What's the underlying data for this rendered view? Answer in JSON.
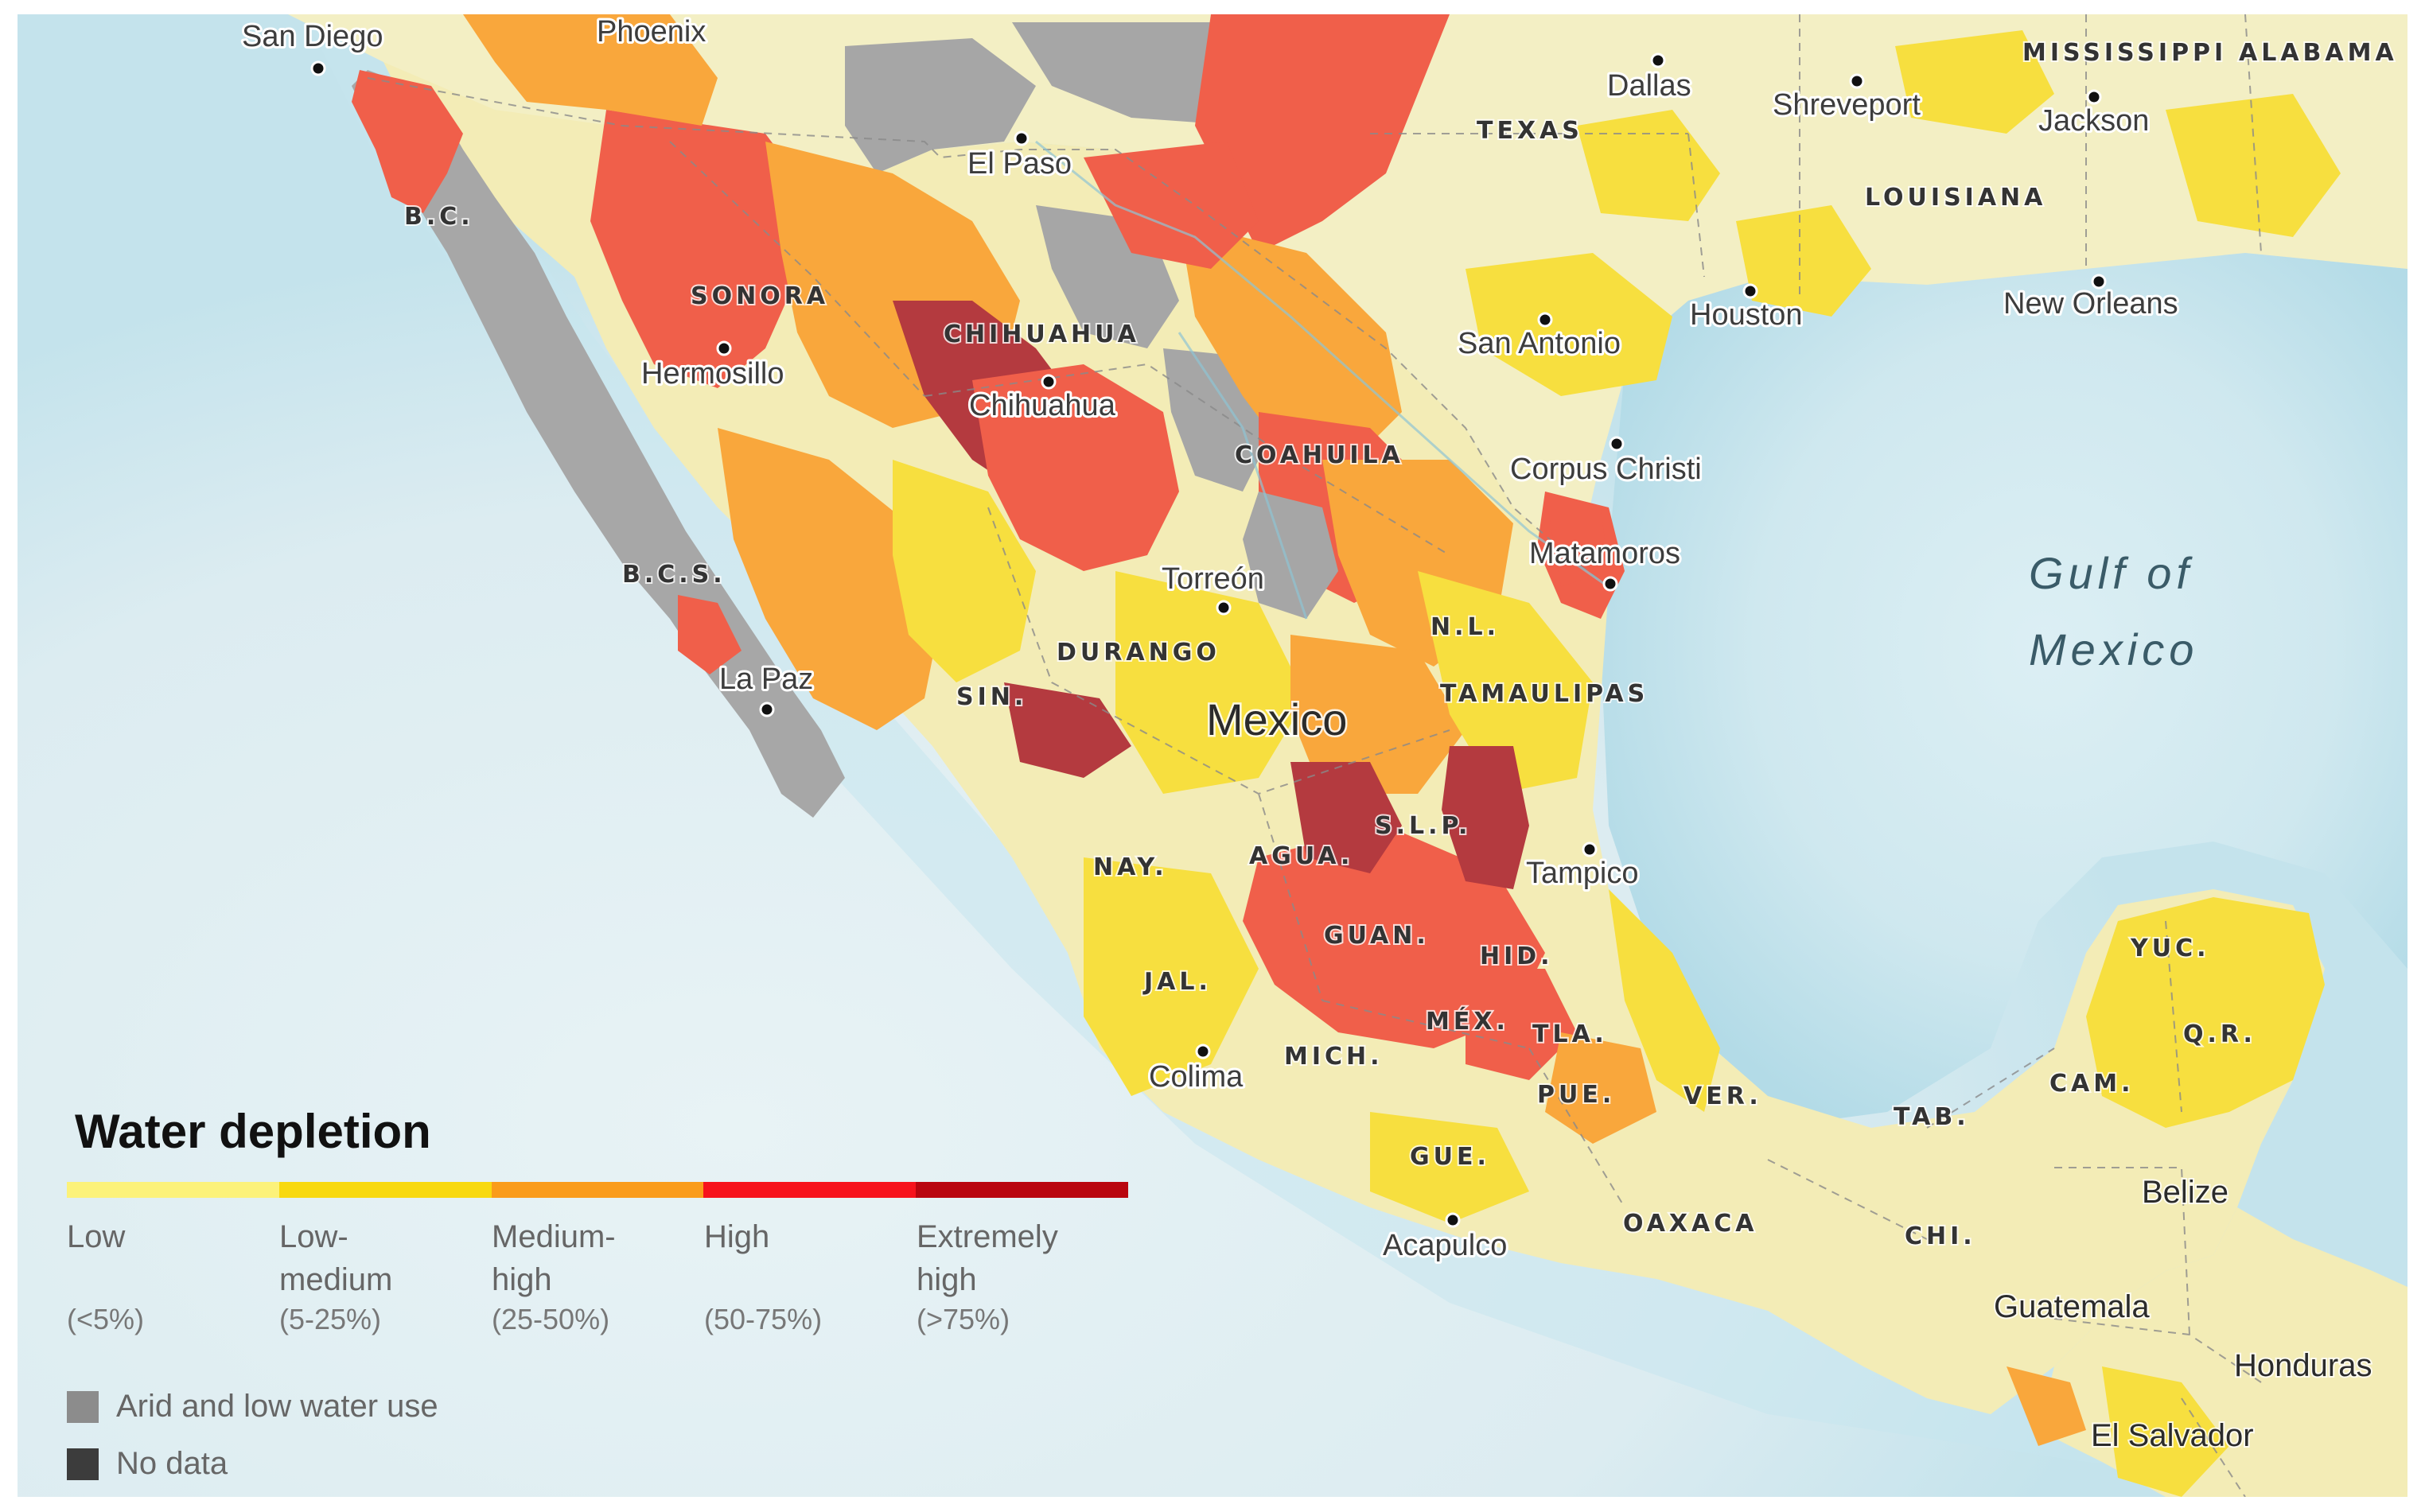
{
  "map": {
    "cities": [
      {
        "id": "san-diego",
        "name": "San Diego"
      },
      {
        "id": "phoenix",
        "name": "Phoenix"
      },
      {
        "id": "el-paso",
        "name": "El Paso"
      },
      {
        "id": "dallas",
        "name": "Dallas"
      },
      {
        "id": "shreveport",
        "name": "Shreveport"
      },
      {
        "id": "jackson",
        "name": "Jackson"
      },
      {
        "id": "new-orleans",
        "name": "New Orleans"
      },
      {
        "id": "houston",
        "name": "Houston"
      },
      {
        "id": "san-antonio",
        "name": "San Antonio"
      },
      {
        "id": "corpus-christi",
        "name": "Corpus Christi"
      },
      {
        "id": "matamoros",
        "name": "Matamoros"
      },
      {
        "id": "hermosillo",
        "name": "Hermosillo"
      },
      {
        "id": "chihuahua",
        "name": "Chihuahua"
      },
      {
        "id": "torreon",
        "name": "Torreón"
      },
      {
        "id": "la-paz",
        "name": "La Paz"
      },
      {
        "id": "tampico",
        "name": "Tampico"
      },
      {
        "id": "colima",
        "name": "Colima"
      },
      {
        "id": "acapulco",
        "name": "Acapulco"
      }
    ],
    "states": [
      {
        "id": "mississippi",
        "name": "MISSISSIPPI"
      },
      {
        "id": "alabama",
        "name": "ALABAMA"
      },
      {
        "id": "texas",
        "name": "TEXAS"
      },
      {
        "id": "louisiana",
        "name": "LOUISIANA"
      },
      {
        "id": "bc",
        "name": "B.C."
      },
      {
        "id": "sonora",
        "name": "SONORA"
      },
      {
        "id": "chihuahua",
        "name": "CHIHUAHUA"
      },
      {
        "id": "coahuila",
        "name": "COAHUILA"
      },
      {
        "id": "bcs",
        "name": "B.C.S."
      },
      {
        "id": "nl",
        "name": "N.L."
      },
      {
        "id": "durango",
        "name": "DURANGO"
      },
      {
        "id": "tamaulipas",
        "name": "TAMAULIPAS"
      },
      {
        "id": "sin",
        "name": "SIN."
      },
      {
        "id": "slp",
        "name": "S.L.P."
      },
      {
        "id": "nay",
        "name": "NAY."
      },
      {
        "id": "agua",
        "name": "AGUA."
      },
      {
        "id": "guan",
        "name": "GUAN."
      },
      {
        "id": "hid",
        "name": "HID."
      },
      {
        "id": "jal",
        "name": "JAL."
      },
      {
        "id": "mex",
        "name": "MÉX."
      },
      {
        "id": "tla",
        "name": "TLA."
      },
      {
        "id": "mich",
        "name": "MICH."
      },
      {
        "id": "pue",
        "name": "PUE."
      },
      {
        "id": "ver",
        "name": "VER."
      },
      {
        "id": "gue",
        "name": "GUE."
      },
      {
        "id": "oaxaca",
        "name": "OAXACA"
      },
      {
        "id": "chi",
        "name": "CHI."
      },
      {
        "id": "tab",
        "name": "TAB."
      },
      {
        "id": "cam",
        "name": "CAM."
      },
      {
        "id": "yuc",
        "name": "YUC."
      },
      {
        "id": "qr",
        "name": "Q.R."
      }
    ],
    "countries": [
      {
        "id": "mexico",
        "name": "Mexico"
      },
      {
        "id": "belize",
        "name": "Belize"
      },
      {
        "id": "guatemala",
        "name": "Guatemala"
      },
      {
        "id": "honduras",
        "name": "Honduras"
      },
      {
        "id": "el-salvador",
        "name": "El Salvador"
      }
    ],
    "water_bodies": [
      {
        "id": "gulf-of-mexico",
        "line1": "Gulf of",
        "line2": "Mexico"
      }
    ],
    "colors": {
      "ocean": "#b6dde9",
      "ocean_deep": "#dceef3",
      "land_base": "#f4f0c6",
      "low": "#faf3a0",
      "low_medium": "#f7df3f",
      "medium_high": "#f9a73c",
      "high": "#f05f4a",
      "extremely_high": "#b43a3f",
      "arid": "#a6a6a6",
      "no_data": "#3c3c3c"
    }
  },
  "legend": {
    "title": "Water depletion",
    "categories": [
      {
        "label": "Low",
        "range": "(<5%)",
        "color": "#fcf27a"
      },
      {
        "label": "Low-\nmedium",
        "range": "(5-25%)",
        "color": "#f8d90f"
      },
      {
        "label": "Medium-\nhigh",
        "range": "(25-50%)",
        "color": "#fa9c1b"
      },
      {
        "label": "High",
        "range": "(50-75%)",
        "color": "#f7131c"
      },
      {
        "label": "Extremely\nhigh",
        "range": "(>75%)",
        "color": "#b9060f"
      }
    ],
    "extras": [
      {
        "label": "Arid and low water use",
        "color": "#8c8c8c"
      },
      {
        "label": "No data",
        "color": "#3c3c3c"
      }
    ]
  }
}
